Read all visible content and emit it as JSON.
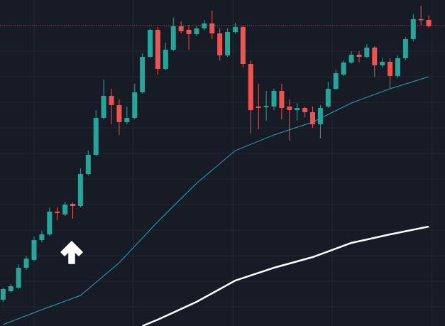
{
  "chart_data": {
    "type": "candlestick",
    "up_color": "#26a69a",
    "down_color": "#ef5350",
    "xlim": [
      -0.4,
      57.1
    ],
    "ylim": [
      0,
      459
    ],
    "xticks": [
      4.0,
      16.8,
      29.7,
      42.5,
      55.4
    ],
    "yticks": [
      27,
      63,
      99,
      135,
      171,
      207,
      243,
      279,
      315,
      351,
      387,
      423
    ],
    "grid": true,
    "open": [
      37,
      49,
      54,
      82,
      93,
      121,
      129,
      161,
      157,
      172,
      169,
      214,
      241,
      293,
      324,
      311,
      287,
      293,
      329,
      379,
      417,
      362,
      389,
      422,
      417,
      411,
      419,
      426,
      412,
      381,
      414,
      421,
      369,
      309,
      308,
      309,
      331,
      309,
      304,
      307,
      301,
      284,
      309,
      334,
      354,
      371,
      382,
      379,
      392,
      367,
      372,
      352,
      377,
      404,
      432,
      431
    ],
    "high": [
      54,
      59,
      87,
      99,
      126,
      134,
      167,
      167,
      175,
      174,
      222,
      247,
      304,
      347,
      334,
      319,
      309,
      341,
      384,
      419,
      421,
      399,
      434,
      429,
      424,
      422,
      431,
      444,
      419,
      419,
      427,
      424,
      374,
      341,
      331,
      334,
      341,
      319,
      314,
      309,
      309,
      311,
      344,
      361,
      374,
      387,
      387,
      397,
      394,
      377,
      377,
      381,
      407,
      439,
      451,
      437
    ],
    "low": [
      34,
      47,
      52,
      79,
      91,
      118,
      127,
      149,
      155,
      151,
      167,
      212,
      239,
      291,
      284,
      269,
      284,
      291,
      327,
      377,
      354,
      360,
      387,
      412,
      389,
      408,
      416,
      404,
      374,
      379,
      411,
      364,
      271,
      277,
      289,
      304,
      291,
      261,
      289,
      294,
      279,
      264,
      307,
      332,
      352,
      369,
      371,
      377,
      351,
      364,
      334,
      349,
      374,
      401,
      424,
      420
    ],
    "close": [
      52,
      56,
      82,
      95,
      121,
      129,
      161,
      159,
      171,
      169,
      214,
      241,
      293,
      324,
      311,
      287,
      293,
      329,
      379,
      417,
      362,
      389,
      422,
      415,
      411,
      419,
      426,
      412,
      381,
      414,
      421,
      369,
      304,
      307,
      310,
      331,
      307,
      304,
      307,
      301,
      284,
      307,
      334,
      356,
      371,
      382,
      379,
      392,
      367,
      372,
      352,
      377,
      404,
      432,
      431,
      422
    ],
    "lines": [
      {
        "color": "#2aa3b4",
        "x": [
          0,
          5,
          10,
          15,
          20,
          25,
          30,
          35,
          40,
          45,
          50,
          55
        ],
        "values": [
          2,
          23,
          43,
          89,
          147,
          201,
          247,
          269,
          287,
          314,
          334,
          351
        ]
      },
      {
        "color": "#ffffff",
        "x": [
          18,
          20,
          25,
          30,
          35,
          40,
          45,
          50,
          55
        ],
        "values": [
          0,
          9,
          34,
          64,
          82,
          97,
          117,
          129,
          140
        ]
      }
    ],
    "price_line": {
      "value": 423,
      "color": "#ef5350"
    }
  }
}
